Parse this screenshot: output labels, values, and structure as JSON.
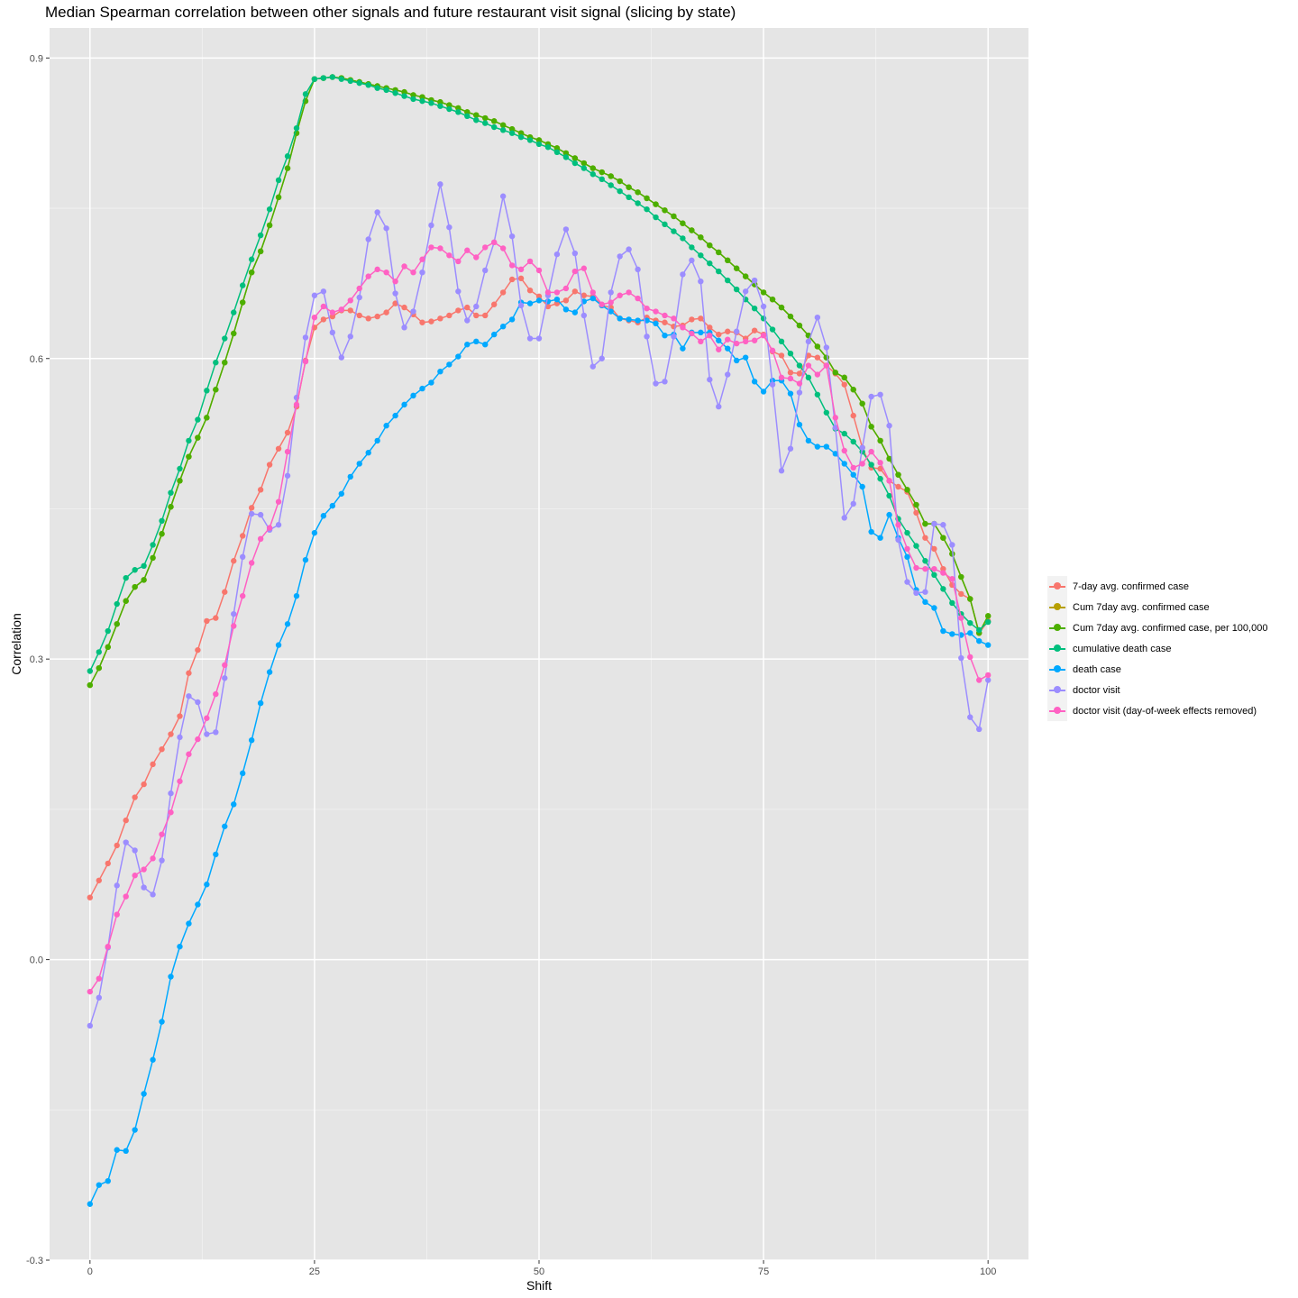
{
  "chart_data": {
    "type": "line",
    "title": "Median Spearman correlation between other signals and future restaurant visit signal (slicing by state)",
    "xlabel": "Shift",
    "ylabel": "Correlation",
    "xlim": [
      -4.5,
      104.5
    ],
    "ylim": [
      -0.3,
      0.93
    ],
    "x_ticks": [
      0,
      25,
      50,
      75,
      100
    ],
    "x_tick_labels": [
      "0",
      "25",
      "50",
      "75",
      "100"
    ],
    "y_ticks": [
      -0.3,
      0.0,
      0.3,
      0.6,
      0.9
    ],
    "y_tick_labels": [
      "-0.3",
      "0.0",
      "0.3",
      "0.6",
      "0.9"
    ],
    "grid": true,
    "legend_position": "right",
    "x": [
      0,
      1,
      2,
      3,
      4,
      5,
      6,
      7,
      8,
      9,
      10,
      11,
      12,
      13,
      14,
      15,
      16,
      17,
      18,
      19,
      20,
      21,
      22,
      23,
      24,
      25,
      26,
      27,
      28,
      29,
      30,
      31,
      32,
      33,
      34,
      35,
      36,
      37,
      38,
      39,
      40,
      41,
      42,
      43,
      44,
      45,
      46,
      47,
      48,
      49,
      50,
      51,
      52,
      53,
      54,
      55,
      56,
      57,
      58,
      59,
      60,
      61,
      62,
      63,
      64,
      65,
      66,
      67,
      68,
      69,
      70,
      71,
      72,
      73,
      74,
      75,
      76,
      77,
      78,
      79,
      80,
      81,
      82,
      83,
      84,
      85,
      86,
      87,
      88,
      89,
      90,
      91,
      92,
      93,
      94,
      95,
      96,
      97,
      98,
      99,
      100
    ],
    "series": [
      {
        "name": "7-day avg. confirmed case",
        "color": "#F8766D",
        "values": [
          0.062,
          0.079,
          0.096,
          0.114,
          0.139,
          0.162,
          0.175,
          0.195,
          0.21,
          0.225,
          0.243,
          0.286,
          0.309,
          0.338,
          0.341,
          0.367,
          0.398,
          0.423,
          0.451,
          0.469,
          0.494,
          0.51,
          0.526,
          0.552,
          0.598,
          0.631,
          0.639,
          0.642,
          0.648,
          0.648,
          0.643,
          0.64,
          0.642,
          0.646,
          0.655,
          0.651,
          0.644,
          0.636,
          0.637,
          0.64,
          0.643,
          0.648,
          0.651,
          0.643,
          0.643,
          0.654,
          0.666,
          0.679,
          0.68,
          0.668,
          0.662,
          0.652,
          0.655,
          0.658,
          0.667,
          0.663,
          0.662,
          0.653,
          0.651,
          0.64,
          0.638,
          0.636,
          0.641,
          0.638,
          0.636,
          0.632,
          0.633,
          0.639,
          0.64,
          0.631,
          0.624,
          0.627,
          0.626,
          0.62,
          0.628,
          0.624,
          0.607,
          0.603,
          0.586,
          0.585,
          0.603,
          0.601,
          0.593,
          0.585,
          0.574,
          0.543,
          0.511,
          0.491,
          0.49,
          0.478,
          0.472,
          0.467,
          0.446,
          0.421,
          0.41,
          0.39,
          0.374,
          0.365,
          0.36,
          0.326,
          0.338
        ]
      },
      {
        "name": "Cum 7day avg. confirmed case",
        "color": "#B79F00",
        "values": [
          0.274,
          0.291,
          0.312,
          0.335,
          0.358,
          0.372,
          0.379,
          0.401,
          0.425,
          0.452,
          0.478,
          0.502,
          0.521,
          0.541,
          0.569,
          0.596,
          0.625,
          0.656,
          0.686,
          0.707,
          0.733,
          0.761,
          0.79,
          0.825,
          0.857,
          0.879,
          0.88,
          0.881,
          0.88,
          0.878,
          0.876,
          0.874,
          0.872,
          0.87,
          0.868,
          0.866,
          0.863,
          0.861,
          0.858,
          0.856,
          0.853,
          0.85,
          0.846,
          0.843,
          0.84,
          0.837,
          0.833,
          0.829,
          0.825,
          0.821,
          0.818,
          0.814,
          0.81,
          0.805,
          0.8,
          0.795,
          0.79,
          0.786,
          0.782,
          0.777,
          0.771,
          0.766,
          0.76,
          0.754,
          0.748,
          0.742,
          0.735,
          0.728,
          0.721,
          0.713,
          0.706,
          0.698,
          0.69,
          0.682,
          0.674,
          0.666,
          0.659,
          0.651,
          0.642,
          0.633,
          0.623,
          0.612,
          0.601,
          0.586,
          0.581,
          0.569,
          0.555,
          0.532,
          0.518,
          0.5,
          0.484,
          0.469,
          0.454,
          0.435,
          0.435,
          0.421,
          0.405,
          0.382,
          0.36,
          0.326,
          0.343
        ]
      },
      {
        "name": "Cum 7day avg. confirmed case, per 100,000",
        "color": "#4CAF00",
        "values": [
          0.274,
          0.291,
          0.312,
          0.335,
          0.358,
          0.372,
          0.379,
          0.401,
          0.425,
          0.452,
          0.478,
          0.502,
          0.521,
          0.541,
          0.569,
          0.596,
          0.625,
          0.656,
          0.686,
          0.707,
          0.733,
          0.761,
          0.79,
          0.825,
          0.857,
          0.879,
          0.88,
          0.881,
          0.88,
          0.878,
          0.876,
          0.874,
          0.872,
          0.87,
          0.868,
          0.866,
          0.863,
          0.861,
          0.858,
          0.856,
          0.853,
          0.85,
          0.846,
          0.843,
          0.84,
          0.837,
          0.833,
          0.829,
          0.825,
          0.821,
          0.818,
          0.814,
          0.81,
          0.805,
          0.8,
          0.795,
          0.79,
          0.786,
          0.782,
          0.777,
          0.771,
          0.766,
          0.76,
          0.754,
          0.748,
          0.742,
          0.735,
          0.728,
          0.721,
          0.713,
          0.706,
          0.698,
          0.69,
          0.682,
          0.674,
          0.666,
          0.659,
          0.651,
          0.642,
          0.633,
          0.623,
          0.612,
          0.601,
          0.586,
          0.581,
          0.569,
          0.555,
          0.532,
          0.518,
          0.5,
          0.484,
          0.469,
          0.454,
          0.435,
          0.435,
          0.421,
          0.405,
          0.382,
          0.36,
          0.326,
          0.343
        ]
      },
      {
        "name": "cumulative death case",
        "color": "#00BF7D",
        "values": [
          0.288,
          0.307,
          0.328,
          0.355,
          0.381,
          0.389,
          0.393,
          0.414,
          0.438,
          0.466,
          0.49,
          0.518,
          0.539,
          0.568,
          0.596,
          0.62,
          0.646,
          0.673,
          0.699,
          0.723,
          0.749,
          0.778,
          0.802,
          0.83,
          0.864,
          0.879,
          0.88,
          0.881,
          0.879,
          0.877,
          0.875,
          0.873,
          0.87,
          0.868,
          0.865,
          0.862,
          0.859,
          0.857,
          0.855,
          0.852,
          0.849,
          0.846,
          0.842,
          0.838,
          0.835,
          0.831,
          0.828,
          0.825,
          0.821,
          0.818,
          0.814,
          0.811,
          0.806,
          0.801,
          0.795,
          0.79,
          0.784,
          0.779,
          0.773,
          0.767,
          0.761,
          0.755,
          0.749,
          0.741,
          0.734,
          0.727,
          0.72,
          0.711,
          0.703,
          0.695,
          0.687,
          0.678,
          0.669,
          0.659,
          0.65,
          0.64,
          0.629,
          0.617,
          0.605,
          0.593,
          0.581,
          0.564,
          0.546,
          0.53,
          0.525,
          0.517,
          0.507,
          0.494,
          0.48,
          0.463,
          0.44,
          0.426,
          0.413,
          0.398,
          0.384,
          0.37,
          0.356,
          0.345,
          0.336,
          0.329,
          0.337
        ]
      },
      {
        "name": "death case",
        "color": "#00A9FF",
        "values": [
          -0.244,
          -0.225,
          -0.221,
          -0.19,
          -0.191,
          -0.17,
          -0.134,
          -0.1,
          -0.062,
          -0.017,
          0.013,
          0.036,
          0.055,
          0.075,
          0.105,
          0.133,
          0.155,
          0.186,
          0.219,
          0.256,
          0.287,
          0.314,
          0.335,
          0.363,
          0.399,
          0.426,
          0.443,
          0.453,
          0.465,
          0.482,
          0.495,
          0.506,
          0.518,
          0.533,
          0.543,
          0.554,
          0.563,
          0.57,
          0.576,
          0.587,
          0.594,
          0.602,
          0.614,
          0.617,
          0.614,
          0.624,
          0.632,
          0.639,
          0.656,
          0.655,
          0.658,
          0.657,
          0.659,
          0.649,
          0.646,
          0.657,
          0.66,
          0.653,
          0.647,
          0.64,
          0.639,
          0.638,
          0.638,
          0.635,
          0.623,
          0.624,
          0.61,
          0.626,
          0.626,
          0.626,
          0.618,
          0.61,
          0.598,
          0.601,
          0.577,
          0.567,
          0.578,
          0.578,
          0.565,
          0.534,
          0.518,
          0.512,
          0.512,
          0.505,
          0.495,
          0.484,
          0.472,
          0.427,
          0.421,
          0.444,
          0.421,
          0.402,
          0.369,
          0.357,
          0.351,
          0.328,
          0.325,
          0.324,
          0.326,
          0.318,
          0.314
        ]
      },
      {
        "name": "doctor visit",
        "color": "#9C8DFF",
        "values": [
          -0.066,
          -0.038,
          0.012,
          0.074,
          0.117,
          0.109,
          0.072,
          0.065,
          0.099,
          0.166,
          0.222,
          0.263,
          0.257,
          0.225,
          0.227,
          0.281,
          0.345,
          0.402,
          0.445,
          0.444,
          0.429,
          0.434,
          0.483,
          0.561,
          0.621,
          0.663,
          0.667,
          0.626,
          0.601,
          0.622,
          0.661,
          0.719,
          0.746,
          0.73,
          0.665,
          0.631,
          0.647,
          0.686,
          0.733,
          0.774,
          0.731,
          0.667,
          0.638,
          0.652,
          0.688,
          0.716,
          0.762,
          0.722,
          0.653,
          0.62,
          0.62,
          0.663,
          0.704,
          0.729,
          0.705,
          0.643,
          0.592,
          0.6,
          0.666,
          0.702,
          0.709,
          0.689,
          0.622,
          0.575,
          0.577,
          0.622,
          0.684,
          0.698,
          0.677,
          0.579,
          0.552,
          0.584,
          0.627,
          0.667,
          0.678,
          0.652,
          0.574,
          0.488,
          0.51,
          0.566,
          0.617,
          0.641,
          0.611,
          0.531,
          0.441,
          0.455,
          0.511,
          0.562,
          0.564,
          0.533,
          0.419,
          0.377,
          0.366,
          0.367,
          0.435,
          0.434,
          0.414,
          0.301,
          0.242,
          0.23,
          0.279
        ]
      },
      {
        "name": "doctor visit (day-of-week effects removed)",
        "color": "#FF61C3",
        "values": [
          -0.032,
          -0.019,
          0.013,
          0.045,
          0.063,
          0.084,
          0.09,
          0.101,
          0.125,
          0.147,
          0.178,
          0.205,
          0.22,
          0.241,
          0.265,
          0.294,
          0.333,
          0.363,
          0.396,
          0.42,
          0.431,
          0.457,
          0.507,
          0.554,
          0.597,
          0.641,
          0.652,
          0.646,
          0.649,
          0.658,
          0.67,
          0.682,
          0.689,
          0.686,
          0.677,
          0.692,
          0.686,
          0.699,
          0.711,
          0.71,
          0.703,
          0.697,
          0.708,
          0.701,
          0.711,
          0.716,
          0.71,
          0.693,
          0.689,
          0.697,
          0.688,
          0.666,
          0.666,
          0.67,
          0.687,
          0.69,
          0.666,
          0.654,
          0.656,
          0.663,
          0.666,
          0.66,
          0.65,
          0.647,
          0.643,
          0.64,
          0.631,
          0.625,
          0.617,
          0.623,
          0.609,
          0.619,
          0.615,
          0.617,
          0.618,
          0.623,
          0.608,
          0.581,
          0.58,
          0.575,
          0.593,
          0.584,
          0.593,
          0.541,
          0.508,
          0.491,
          0.495,
          0.507,
          0.496,
          0.478,
          0.434,
          0.41,
          0.391,
          0.39,
          0.39,
          0.386,
          0.38,
          0.341,
          0.302,
          0.279,
          0.284
        ]
      }
    ]
  }
}
